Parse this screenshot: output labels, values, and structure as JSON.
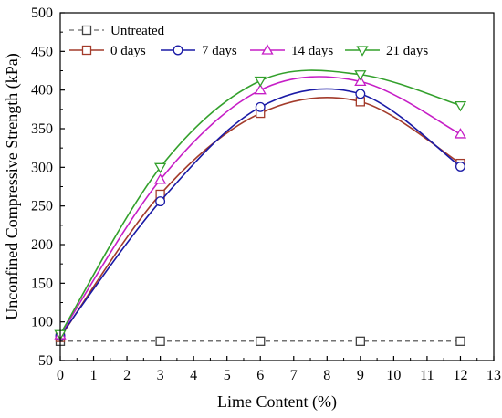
{
  "chart_data": {
    "type": "line",
    "xlabel": "Lime Content (%)",
    "ylabel": "Unconfined Compressive Strength (kPa)",
    "xlim": [
      0,
      13
    ],
    "ylim": [
      50,
      500
    ],
    "xticks": [
      "0",
      "1",
      "2",
      "3",
      "4",
      "5",
      "6",
      "7",
      "8",
      "9",
      "10",
      "11",
      "12",
      "13"
    ],
    "yticks": [
      "50",
      "100",
      "150",
      "200",
      "250",
      "300",
      "350",
      "400",
      "450",
      "500"
    ],
    "grid": false,
    "legend_position": "top",
    "series": [
      {
        "name": "Untreated",
        "color": "#444444",
        "marker": "square",
        "line_style": "dashed",
        "x": [
          0,
          3,
          6,
          9,
          12
        ],
        "y": [
          75,
          75,
          75,
          75,
          75
        ]
      },
      {
        "name": "0 days",
        "color": "#a33b2b",
        "marker": "square",
        "line_style": "solid",
        "x": [
          0,
          3,
          6,
          9,
          12
        ],
        "y": [
          80,
          265,
          370,
          385,
          305
        ]
      },
      {
        "name": "7 days",
        "color": "#1a1aa6",
        "marker": "circle",
        "line_style": "solid",
        "x": [
          0,
          3,
          6,
          9,
          12
        ],
        "y": [
          82,
          256,
          378,
          395,
          301
        ]
      },
      {
        "name": "14 days",
        "color": "#c61ec6",
        "marker": "triangle-up",
        "line_style": "solid",
        "x": [
          0,
          3,
          6,
          9,
          12
        ],
        "y": [
          83,
          284,
          400,
          411,
          343
        ]
      },
      {
        "name": "21 days",
        "color": "#33a02c",
        "marker": "triangle-down",
        "line_style": "solid",
        "x": [
          0,
          3,
          6,
          9,
          12
        ],
        "y": [
          84,
          300,
          412,
          420,
          380
        ]
      }
    ]
  }
}
